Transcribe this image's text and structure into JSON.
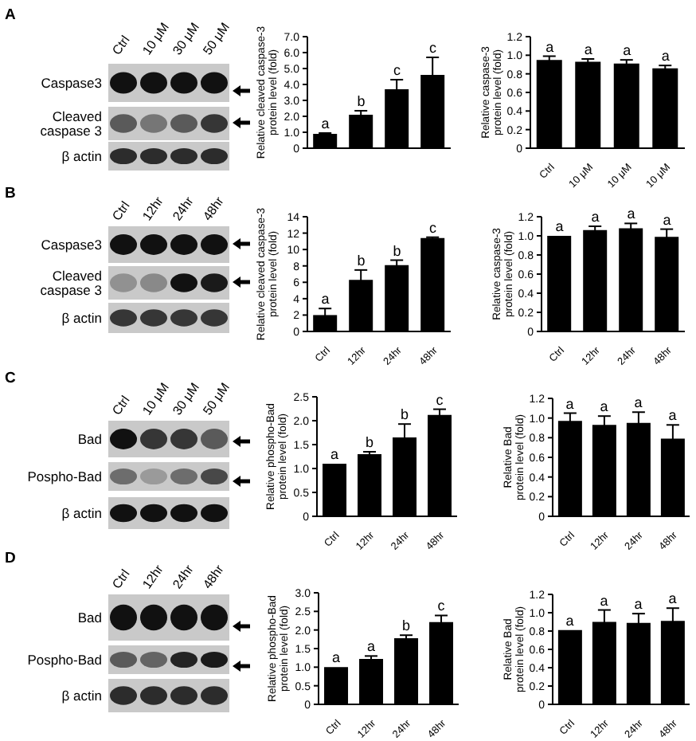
{
  "chart_data": [
    {
      "type": "other",
      "title": "A",
      "categories": [
        "Ctrl",
        "10 μM",
        "30 μM",
        "50 μM"
      ],
      "annotations": [
        "Caspase3",
        "Cleaved\ncaspase 3",
        "β actin"
      ]
    },
    {
      "type": "bar",
      "categories": [
        null,
        null,
        null,
        null
      ],
      "values": [
        0.9,
        2.1,
        3.7,
        4.6
      ],
      "errors": [
        0.05,
        0.25,
        0.6,
        1.1
      ],
      "color": "#000000",
      "ylabel": "Relative cleaved caspase-3\nprotein level (fold)",
      "ylim": [
        0,
        7
      ],
      "yticks": [
        0,
        {
          "value": 1,
          "label": "1.0"
        },
        {
          "value": 2,
          "label": "2.0"
        },
        {
          "value": 3,
          "label": "3.0"
        },
        {
          "value": 4,
          "label": "4.0"
        },
        {
          "value": 5,
          "label": "5.0"
        },
        {
          "value": 6,
          "label": "6.0"
        },
        {
          "value": 7,
          "label": "7.0"
        }
      ],
      "annotations": [
        "a",
        "b",
        "c",
        "c"
      ]
    },
    {
      "type": "bar",
      "categories": [
        "Ctrl",
        "10 μM",
        "10 μM",
        "10 μM"
      ],
      "values": [
        0.95,
        0.93,
        0.91,
        0.86
      ],
      "errors": [
        0.04,
        0.03,
        0.04,
        0.03
      ],
      "color": "#000000",
      "ylabel": "Relative caspase-3\nprotein level (fold)",
      "ylim": [
        0,
        1.2
      ],
      "yticks": [
        0,
        0.2,
        0.4,
        0.6,
        0.8,
        {
          "value": 1,
          "label": "1.0"
        },
        1.2
      ],
      "annotations": [
        "a",
        "a",
        "a",
        "a"
      ]
    },
    {
      "type": "other",
      "title": "B",
      "categories": [
        "Ctrl",
        "12hr",
        "24hr",
        "48hr"
      ],
      "annotations": [
        "Caspase3",
        "Cleaved\ncaspase 3",
        "β actin"
      ]
    },
    {
      "type": "bar",
      "categories": [
        "Ctrl",
        "12hr",
        "24hr",
        "48hr"
      ],
      "values": [
        2.0,
        6.3,
        8.1,
        11.4
      ],
      "errors": [
        0.8,
        1.2,
        0.6,
        0.1
      ],
      "color": "#000000",
      "ylabel": "Relative cleaved caspase-3\nprotein level (fold)",
      "ylim": [
        0,
        14
      ],
      "yticks": [
        0,
        2,
        4,
        6,
        8,
        10,
        12,
        14
      ],
      "annotations": [
        "a",
        "b",
        "b",
        "c"
      ]
    },
    {
      "type": "bar",
      "categories": [
        "Ctrl",
        "12hr",
        "24hr",
        "48hr"
      ],
      "values": [
        1.0,
        1.06,
        1.08,
        0.99
      ],
      "errors": [
        null,
        0.04,
        0.05,
        0.08
      ],
      "color": "#000000",
      "ylabel": "Relative caspase-3\nprotein level (fold)",
      "ylim": [
        0,
        1.2
      ],
      "yticks": [
        0,
        0.2,
        0.4,
        0.6,
        0.8,
        {
          "value": 1,
          "label": "1.0"
        },
        1.2
      ],
      "annotations": [
        "a",
        "a",
        "a",
        "a"
      ]
    },
    {
      "type": "other",
      "title": "C",
      "categories": [
        "Ctrl",
        "10 μM",
        "30 μM",
        "50 μM"
      ],
      "annotations": [
        "Bad",
        "Pospho-Bad",
        "β actin"
      ]
    },
    {
      "type": "bar",
      "categories": [
        "Ctrl",
        "12hr",
        "24hr",
        "48hr"
      ],
      "values": [
        1.1,
        1.3,
        1.65,
        2.12
      ],
      "errors": [
        null,
        0.05,
        0.28,
        0.12
      ],
      "color": "#000000",
      "ylabel": "Relative phospho-Bad\nprotein level (fold)",
      "ylim": [
        0,
        2.5
      ],
      "yticks": [
        0,
        0.5,
        {
          "value": 1,
          "label": "1.0"
        },
        1.5,
        {
          "value": 2,
          "label": "2.0"
        },
        2.5
      ],
      "annotations": [
        "a",
        "b",
        "b",
        "c"
      ]
    },
    {
      "type": "bar",
      "categories": [
        "Ctrl",
        "12hr",
        "24hr",
        "48hr"
      ],
      "values": [
        0.97,
        0.93,
        0.95,
        0.79
      ],
      "errors": [
        0.08,
        0.09,
        0.11,
        0.14
      ],
      "color": "#000000",
      "ylabel": "Relative Bad\nprotein level (fold)",
      "ylim": [
        0,
        1.2
      ],
      "yticks": [
        0,
        0.2,
        0.4,
        0.6,
        0.8,
        {
          "value": 1,
          "label": "1.0"
        },
        1.2
      ],
      "annotations": [
        "a",
        "a",
        "a",
        "a"
      ]
    },
    {
      "type": "other",
      "title": "D",
      "categories": [
        "Ctrl",
        "12hr",
        "24hr",
        "48hr"
      ],
      "annotations": [
        "Bad",
        "Pospho-Bad",
        "β actin"
      ]
    },
    {
      "type": "bar",
      "categories": [
        "Ctrl",
        "12hr",
        "24hr",
        "48hr"
      ],
      "values": [
        1.0,
        1.22,
        1.78,
        2.21
      ],
      "errors": [
        null,
        0.08,
        0.08,
        0.18
      ],
      "color": "#000000",
      "ylabel": "Relative phospho-Bad\nprotein level (fold)",
      "ylim": [
        0,
        3
      ],
      "yticks": [
        0,
        0.5,
        {
          "value": 1,
          "label": "1.0"
        },
        1.5,
        {
          "value": 2,
          "label": "2.0"
        },
        2.5,
        {
          "value": 3,
          "label": "3.0"
        }
      ],
      "annotations": [
        "a",
        "a",
        "b",
        "c"
      ]
    },
    {
      "type": "bar",
      "categories": [
        "Ctrl",
        "12hr",
        "24hr",
        "48hr"
      ],
      "values": [
        0.81,
        0.9,
        0.89,
        0.91
      ],
      "errors": [
        null,
        0.13,
        0.1,
        0.14
      ],
      "color": "#000000",
      "ylabel": "Relative Bad\nprotein level (fold)",
      "ylim": [
        0,
        1.2
      ],
      "yticks": [
        0,
        0.2,
        0.4,
        0.6,
        0.8,
        {
          "value": 1,
          "label": "1.0"
        },
        1.2
      ],
      "annotations": [
        "a",
        "a",
        "a",
        "a"
      ]
    }
  ]
}
